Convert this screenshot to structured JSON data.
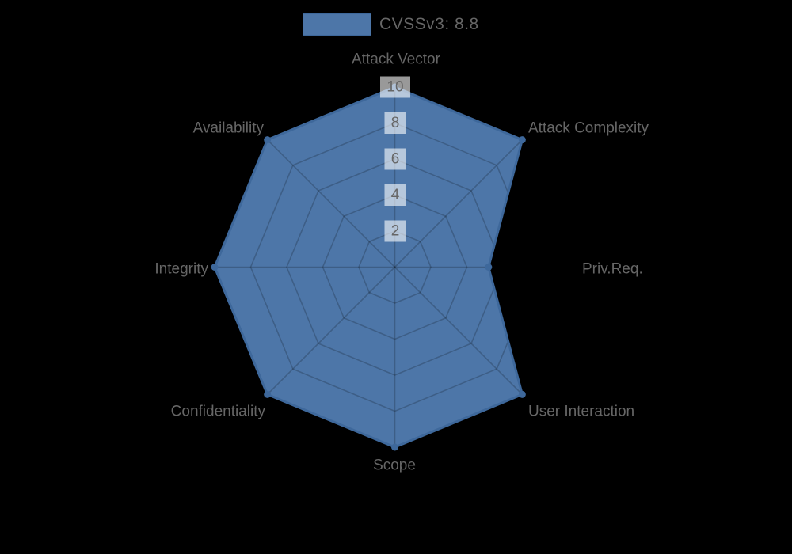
{
  "page": {
    "background": "#000000"
  },
  "legend": {
    "label": "CVSSv3: 8.8",
    "swatch_color": "#4d76a8",
    "swatch_border": "#3e689b",
    "text_color": "#666666"
  },
  "chart_data": {
    "type": "radar",
    "title": "CVSSv3: 8.8",
    "categories": [
      "Attack Vector",
      "Attack Complexity",
      "Priv.Req.",
      "User Interaction",
      "Scope",
      "Confidentiality",
      "Integrity",
      "Availability"
    ],
    "series": [
      {
        "name": "CVSSv3: 8.8",
        "values": [
          10,
          10,
          5.2,
          10,
          10,
          10,
          10,
          10
        ]
      }
    ],
    "ticks": [
      "2",
      "4",
      "6",
      "8",
      "10"
    ],
    "rlim": [
      0,
      10
    ],
    "grid": true,
    "legend_position": "top",
    "colors": {
      "fill": "#4d76a8",
      "border": "#3e689b",
      "point": "#3e689b",
      "grid_line": "rgba(0,0,0,0.2)",
      "label": "#666666",
      "tick_text": "#666666",
      "tick_backdrop": "rgba(255,255,255,0.6)"
    }
  }
}
